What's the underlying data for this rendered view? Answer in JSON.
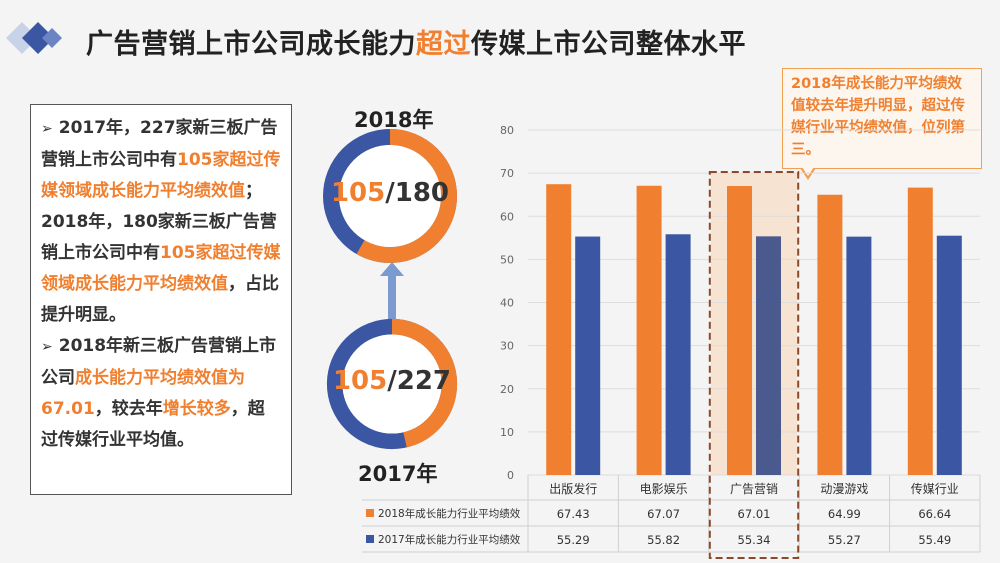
{
  "header": {
    "title_part1": "广告营销上市公司成长能力",
    "title_highlight": "超过",
    "title_part2": "传媒上市公司整体水平"
  },
  "textbox": {
    "b1_a": "2017年，227家新三板广告营销上市公司中有",
    "b1_hl1": "105家超过传媒领域成长能力平均绩效值",
    "b1_b": "；2018年，180家新三板广告营销上市公司中有",
    "b1_hl2": "105家超过传媒领域成长能力平均绩效值",
    "b1_c": "，占比提升明显。",
    "b2_a": "2018年新三板广告营销上市公司",
    "b2_hl1": "成长能力平均绩效值为67.01",
    "b2_b": "，较去年",
    "b2_hl2": "增长较多",
    "b2_c": "，超过传媒行业平均值。"
  },
  "donut_2018": {
    "label": "2018年",
    "num": "105",
    "den": "/180",
    "fraction": 0.583
  },
  "donut_2017": {
    "label": "2017年",
    "num": "105",
    "den": "/227",
    "fraction": 0.463
  },
  "callout": {
    "text": "2018年成长能力平均绩效值较去年提升明显，超过传媒行业平均绩效值，位列第三。"
  },
  "colors": {
    "orange": "#f08030",
    "blue": "#3b56a2",
    "highlight_bar": "#4a5a8e",
    "arrow": "#7a9ad0"
  },
  "chart_data": {
    "type": "bar",
    "categories": [
      "出版发行",
      "电影娱乐",
      "广告营销",
      "动漫游戏",
      "传媒行业"
    ],
    "series": [
      {
        "name": "2018年成长能力行业平均绩效",
        "values": [
          67.43,
          67.07,
          67.01,
          64.99,
          66.64
        ],
        "color": "#f08030"
      },
      {
        "name": "2017年成长能力行业平均绩效",
        "values": [
          55.29,
          55.82,
          55.34,
          55.27,
          55.49
        ],
        "color": "#3b56a2"
      }
    ],
    "table_values": [
      [
        "67.43",
        "67.07",
        "67.01",
        "64.99",
        "66.64"
      ],
      [
        "55.29",
        "55.82",
        "55.34",
        "55.27",
        "55.49"
      ]
    ],
    "yticks": [
      "0",
      "10",
      "20",
      "30",
      "40",
      "50",
      "60",
      "70",
      "80"
    ],
    "ylim": [
      0,
      80
    ],
    "highlight_category": "广告营销",
    "legend": "data-table-below"
  }
}
